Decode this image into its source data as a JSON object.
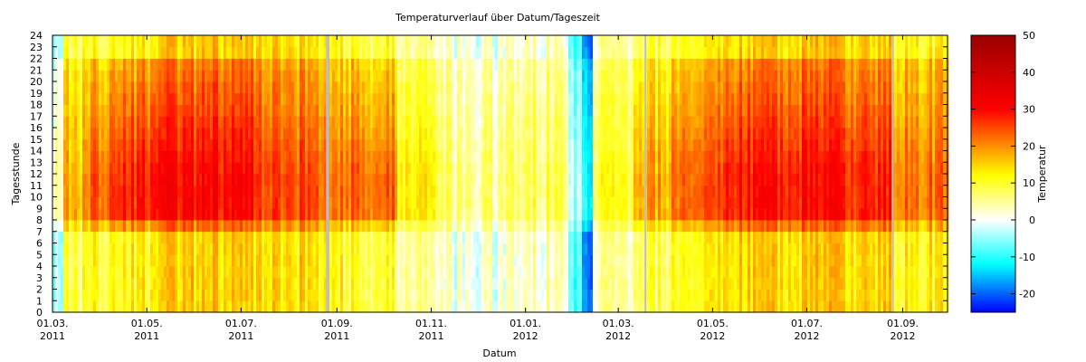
{
  "chart_data": {
    "type": "heatmap",
    "title": "Temperaturverlauf über Datum/Tageszeit",
    "xlabel": "Datum",
    "ylabel": "Tagesstunde",
    "colorbar_label": "Temperatur",
    "x_range": [
      "2011-03-01",
      "2012-09-30"
    ],
    "y_range": [
      0,
      24
    ],
    "y_ticks": [
      0,
      1,
      2,
      3,
      4,
      5,
      6,
      7,
      8,
      9,
      10,
      11,
      12,
      13,
      14,
      15,
      16,
      17,
      18,
      19,
      20,
      21,
      22,
      23,
      24
    ],
    "x_ticks": [
      {
        "date": "2011-03-01",
        "label_day": "01.03.",
        "label_year": "2011"
      },
      {
        "date": "2011-05-01",
        "label_day": "01.05.",
        "label_year": "2011"
      },
      {
        "date": "2011-07-01",
        "label_day": "01.07.",
        "label_year": "2011"
      },
      {
        "date": "2011-09-01",
        "label_day": "01.09.",
        "label_year": "2011"
      },
      {
        "date": "2011-11-01",
        "label_day": "01.11.",
        "label_year": "2011"
      },
      {
        "date": "2012-01-01",
        "label_day": "01.01.",
        "label_year": "2012"
      },
      {
        "date": "2012-03-01",
        "label_day": "01.03.",
        "label_year": "2012"
      },
      {
        "date": "2012-05-01",
        "label_day": "01.05.",
        "label_year": "2012"
      },
      {
        "date": "2012-07-01",
        "label_day": "01.07.",
        "label_year": "2012"
      },
      {
        "date": "2012-09-01",
        "label_day": "01.09.",
        "label_year": "2012"
      }
    ],
    "colorbar": {
      "range": [
        -25,
        50
      ],
      "ticks": [
        50,
        40,
        30,
        20,
        10,
        0,
        -10,
        -20
      ],
      "stops": [
        {
          "value": -25,
          "color": "#0000ff"
        },
        {
          "value": -12,
          "color": "#00ffff"
        },
        {
          "value": 0,
          "color": "#ffffff"
        },
        {
          "value": 12,
          "color": "#ffff00"
        },
        {
          "value": 30,
          "color": "#ff0000"
        },
        {
          "value": 50,
          "color": "#990000"
        }
      ]
    },
    "missing_color": "#bebebe",
    "segments": [
      {
        "start": "2011-03-01",
        "end": "2011-03-08",
        "night": -3,
        "day": 5
      },
      {
        "start": "2011-03-08",
        "end": "2011-03-25",
        "night": 8,
        "day": 17
      },
      {
        "start": "2011-03-25",
        "end": "2011-04-10",
        "night": 10,
        "day": 24
      },
      {
        "start": "2011-04-10",
        "end": "2011-05-10",
        "night": 12,
        "day": 28
      },
      {
        "start": "2011-05-10",
        "end": "2011-07-10",
        "night": 15,
        "day": 30
      },
      {
        "start": "2011-07-10",
        "end": "2011-08-25",
        "night": 14,
        "day": 25
      },
      {
        "start": "2011-08-25",
        "end": "2011-09-05",
        "night": 12,
        "day": 22
      },
      {
        "start": "2011-09-05",
        "end": "2011-10-10",
        "night": 10,
        "day": 23
      },
      {
        "start": "2011-10-10",
        "end": "2011-11-05",
        "night": 4,
        "day": 12
      },
      {
        "start": "2011-11-05",
        "end": "2011-12-20",
        "night": 1,
        "day": 6
      },
      {
        "start": "2011-12-20",
        "end": "2012-01-28",
        "night": 3,
        "day": 8
      },
      {
        "start": "2012-01-28",
        "end": "2012-02-06",
        "night": -8,
        "day": -3
      },
      {
        "start": "2012-02-06",
        "end": "2012-02-14",
        "night": -17,
        "day": -10
      },
      {
        "start": "2012-02-14",
        "end": "2012-03-10",
        "night": 4,
        "day": 10
      },
      {
        "start": "2012-03-10",
        "end": "2012-04-05",
        "night": 8,
        "day": 18
      },
      {
        "start": "2012-04-05",
        "end": "2012-05-10",
        "night": 12,
        "day": 24
      },
      {
        "start": "2012-05-10",
        "end": "2012-07-05",
        "night": 15,
        "day": 29
      },
      {
        "start": "2012-07-05",
        "end": "2012-08-25",
        "night": 15,
        "day": 28
      },
      {
        "start": "2012-08-25",
        "end": "2012-09-30",
        "night": 12,
        "day": 22
      }
    ],
    "missing_columns": [
      {
        "start": "2011-08-25",
        "end": "2011-08-27"
      },
      {
        "start": "2012-03-18",
        "end": "2012-03-19"
      },
      {
        "start": "2012-08-25",
        "end": "2012-08-26"
      }
    ]
  }
}
